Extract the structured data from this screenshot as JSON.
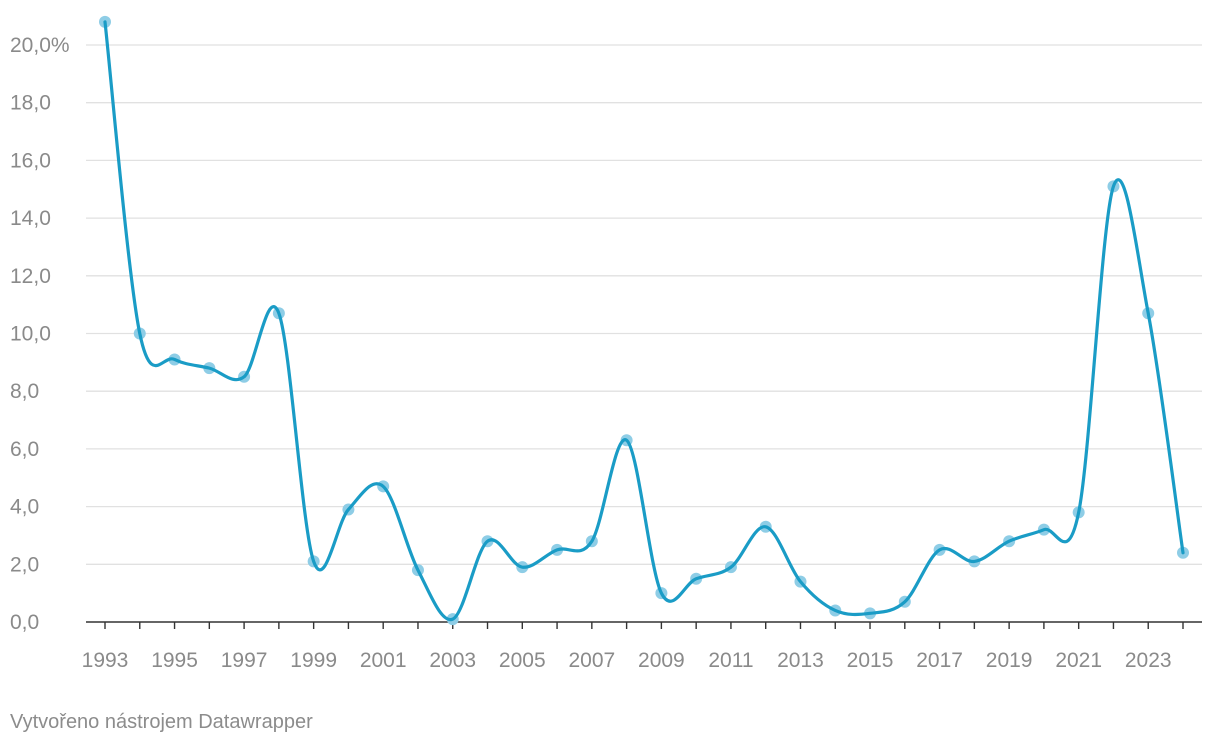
{
  "chart_data": {
    "type": "line",
    "title": "",
    "xlabel": "",
    "ylabel": "",
    "x": [
      1993,
      1994,
      1995,
      1996,
      1997,
      1998,
      1999,
      2000,
      2001,
      2002,
      2003,
      2004,
      2005,
      2006,
      2007,
      2008,
      2009,
      2010,
      2011,
      2012,
      2013,
      2014,
      2015,
      2016,
      2017,
      2018,
      2019,
      2020,
      2021,
      2022,
      2023,
      2024
    ],
    "series": [
      {
        "values": [
          20.8,
          10.0,
          9.1,
          8.8,
          8.5,
          10.7,
          2.1,
          3.9,
          4.7,
          1.8,
          0.1,
          2.8,
          1.9,
          2.5,
          2.8,
          6.3,
          1.0,
          1.5,
          1.9,
          3.3,
          1.4,
          0.4,
          0.3,
          0.7,
          2.5,
          2.1,
          2.8,
          3.2,
          3.8,
          15.1,
          10.7,
          2.4
        ]
      }
    ],
    "ylim": [
      0,
      20
    ],
    "y_ticks": [
      "0,0",
      "2,0",
      "4,0",
      "6,0",
      "8,0",
      "10,0",
      "12,0",
      "14,0",
      "16,0",
      "18,0",
      "20,0%"
    ],
    "x_tick_labels": [
      "1993",
      "1995",
      "1997",
      "1999",
      "2001",
      "2003",
      "2005",
      "2007",
      "2009",
      "2011",
      "2013",
      "2015",
      "2017",
      "2019",
      "2021",
      "2023"
    ],
    "grid": true,
    "colors": {
      "line": "#1a9cc6",
      "marker": "#8ecde6",
      "grid": "#e1e1e1",
      "axis": "#333333",
      "label": "#8a8a8a"
    }
  },
  "footer": {
    "credit": "Vytvořeno nástrojem Datawrapper"
  }
}
